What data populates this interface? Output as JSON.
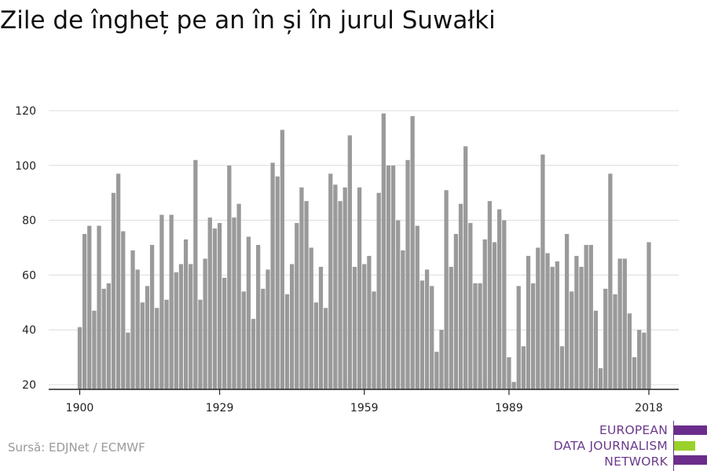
{
  "title": "Zile de îngheț pe an în și în jurul Suwałki",
  "source": "Sursă: EDJNet / ECMWF",
  "logo": {
    "lines": [
      "EUROPEAN",
      "DATA JOURNALISM",
      "NETWORK"
    ],
    "colors": {
      "purple": "#6b2d8c",
      "green": "#9ad12a"
    }
  },
  "chart_data": {
    "type": "bar",
    "title": "Zile de îngheț pe an în și în jurul Suwałki",
    "xlabel": "",
    "ylabel": "",
    "ylim": [
      18,
      122
    ],
    "yticks": [
      20,
      40,
      60,
      80,
      100,
      120
    ],
    "xticks": [
      1900,
      1929,
      1959,
      1989,
      2018
    ],
    "grid": true,
    "bar_color": "#9a9a9a",
    "series": [
      {
        "values": [
          {
            "x": 1900,
            "y": 41
          },
          {
            "x": 1901,
            "y": 75
          },
          {
            "x": 1902,
            "y": 78
          },
          {
            "x": 1903,
            "y": 47
          },
          {
            "x": 1904,
            "y": 78
          },
          {
            "x": 1905,
            "y": 55
          },
          {
            "x": 1906,
            "y": 57
          },
          {
            "x": 1907,
            "y": 90
          },
          {
            "x": 1908,
            "y": 97
          },
          {
            "x": 1909,
            "y": 76
          },
          {
            "x": 1910,
            "y": 39
          },
          {
            "x": 1911,
            "y": 69
          },
          {
            "x": 1912,
            "y": 62
          },
          {
            "x": 1913,
            "y": 50
          },
          {
            "x": 1914,
            "y": 56
          },
          {
            "x": 1915,
            "y": 71
          },
          {
            "x": 1916,
            "y": 48
          },
          {
            "x": 1917,
            "y": 82
          },
          {
            "x": 1918,
            "y": 51
          },
          {
            "x": 1919,
            "y": 82
          },
          {
            "x": 1920,
            "y": 61
          },
          {
            "x": 1921,
            "y": 64
          },
          {
            "x": 1922,
            "y": 73
          },
          {
            "x": 1923,
            "y": 64
          },
          {
            "x": 1924,
            "y": 102
          },
          {
            "x": 1925,
            "y": 51
          },
          {
            "x": 1926,
            "y": 66
          },
          {
            "x": 1927,
            "y": 81
          },
          {
            "x": 1928,
            "y": 77
          },
          {
            "x": 1929,
            "y": 79
          },
          {
            "x": 1930,
            "y": 59
          },
          {
            "x": 1931,
            "y": 100
          },
          {
            "x": 1932,
            "y": 81
          },
          {
            "x": 1933,
            "y": 86
          },
          {
            "x": 1934,
            "y": 54
          },
          {
            "x": 1935,
            "y": 74
          },
          {
            "x": 1936,
            "y": 44
          },
          {
            "x": 1937,
            "y": 71
          },
          {
            "x": 1938,
            "y": 55
          },
          {
            "x": 1939,
            "y": 62
          },
          {
            "x": 1940,
            "y": 101
          },
          {
            "x": 1941,
            "y": 96
          },
          {
            "x": 1942,
            "y": 113
          },
          {
            "x": 1943,
            "y": 53
          },
          {
            "x": 1944,
            "y": 64
          },
          {
            "x": 1945,
            "y": 79
          },
          {
            "x": 1946,
            "y": 92
          },
          {
            "x": 1947,
            "y": 87
          },
          {
            "x": 1948,
            "y": 70
          },
          {
            "x": 1949,
            "y": 50
          },
          {
            "x": 1950,
            "y": 63
          },
          {
            "x": 1951,
            "y": 48
          },
          {
            "x": 1952,
            "y": 97
          },
          {
            "x": 1953,
            "y": 93
          },
          {
            "x": 1954,
            "y": 87
          },
          {
            "x": 1955,
            "y": 92
          },
          {
            "x": 1956,
            "y": 111
          },
          {
            "x": 1957,
            "y": 63
          },
          {
            "x": 1958,
            "y": 92
          },
          {
            "x": 1959,
            "y": 64
          },
          {
            "x": 1960,
            "y": 67
          },
          {
            "x": 1961,
            "y": 54
          },
          {
            "x": 1962,
            "y": 90
          },
          {
            "x": 1963,
            "y": 119
          },
          {
            "x": 1964,
            "y": 100
          },
          {
            "x": 1965,
            "y": 100
          },
          {
            "x": 1966,
            "y": 80
          },
          {
            "x": 1967,
            "y": 69
          },
          {
            "x": 1968,
            "y": 102
          },
          {
            "x": 1969,
            "y": 118
          },
          {
            "x": 1970,
            "y": 78
          },
          {
            "x": 1971,
            "y": 58
          },
          {
            "x": 1972,
            "y": 62
          },
          {
            "x": 1973,
            "y": 56
          },
          {
            "x": 1974,
            "y": 32
          },
          {
            "x": 1975,
            "y": 40
          },
          {
            "x": 1976,
            "y": 91
          },
          {
            "x": 1977,
            "y": 63
          },
          {
            "x": 1978,
            "y": 75
          },
          {
            "x": 1979,
            "y": 86
          },
          {
            "x": 1980,
            "y": 107
          },
          {
            "x": 1981,
            "y": 79
          },
          {
            "x": 1982,
            "y": 57
          },
          {
            "x": 1983,
            "y": 57
          },
          {
            "x": 1984,
            "y": 73
          },
          {
            "x": 1985,
            "y": 87
          },
          {
            "x": 1986,
            "y": 72
          },
          {
            "x": 1987,
            "y": 84
          },
          {
            "x": 1988,
            "y": 80
          },
          {
            "x": 1989,
            "y": 30
          },
          {
            "x": 1990,
            "y": 21
          },
          {
            "x": 1991,
            "y": 56
          },
          {
            "x": 1992,
            "y": 34
          },
          {
            "x": 1993,
            "y": 67
          },
          {
            "x": 1994,
            "y": 57
          },
          {
            "x": 1995,
            "y": 70
          },
          {
            "x": 1996,
            "y": 104
          },
          {
            "x": 1997,
            "y": 68
          },
          {
            "x": 1998,
            "y": 63
          },
          {
            "x": 1999,
            "y": 65
          },
          {
            "x": 2000,
            "y": 34
          },
          {
            "x": 2001,
            "y": 75
          },
          {
            "x": 2002,
            "y": 54
          },
          {
            "x": 2003,
            "y": 67
          },
          {
            "x": 2004,
            "y": 63
          },
          {
            "x": 2005,
            "y": 71
          },
          {
            "x": 2006,
            "y": 71
          },
          {
            "x": 2007,
            "y": 47
          },
          {
            "x": 2008,
            "y": 26
          },
          {
            "x": 2009,
            "y": 55
          },
          {
            "x": 2010,
            "y": 97
          },
          {
            "x": 2011,
            "y": 53
          },
          {
            "x": 2012,
            "y": 66
          },
          {
            "x": 2013,
            "y": 66
          },
          {
            "x": 2014,
            "y": 46
          },
          {
            "x": 2015,
            "y": 30
          },
          {
            "x": 2016,
            "y": 40
          },
          {
            "x": 2017,
            "y": 39
          },
          {
            "x": 2018,
            "y": 72
          }
        ]
      }
    ]
  }
}
